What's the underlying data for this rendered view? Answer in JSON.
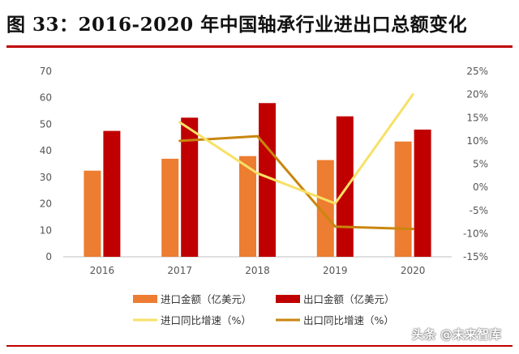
{
  "title": "图 33：2016-2020 年中国轴承行业进出口总额变化",
  "watermark": "头条 @未来智库",
  "colors": {
    "rule": "#C00000",
    "import_bar": "#ED7D31",
    "export_bar": "#C00000",
    "import_line": "#F7E166",
    "export_line": "#C9860F",
    "axis": "#BFBFBF"
  },
  "chart_data": {
    "type": "bar",
    "categories": [
      "2016",
      "2017",
      "2018",
      "2019",
      "2020"
    ],
    "series": [
      {
        "name": "进口金额（亿美元）",
        "type": "bar",
        "axis": "left",
        "values": [
          32.5,
          37,
          38,
          36.5,
          43.5
        ]
      },
      {
        "name": "出口金额（亿美元）",
        "type": "bar",
        "axis": "left",
        "values": [
          47.5,
          52.5,
          58,
          53,
          48
        ]
      },
      {
        "name": "进口同比增速（%）",
        "type": "line",
        "axis": "right",
        "values": [
          null,
          14,
          3,
          -3.5,
          20
        ]
      },
      {
        "name": "出口同比增速（%）",
        "type": "line",
        "axis": "right",
        "values": [
          null,
          10,
          11,
          -8.5,
          -9
        ]
      }
    ],
    "y_left": {
      "min": 0,
      "max": 70,
      "ticks": [
        "0",
        "10",
        "20",
        "30",
        "40",
        "50",
        "60",
        "70"
      ]
    },
    "y_right": {
      "min": -15,
      "max": 25,
      "ticks": [
        "-15%",
        "-10%",
        "-5%",
        "0%",
        "5%",
        "10%",
        "15%",
        "20%",
        "25%"
      ]
    },
    "legend_position": "bottom",
    "grid": false
  }
}
